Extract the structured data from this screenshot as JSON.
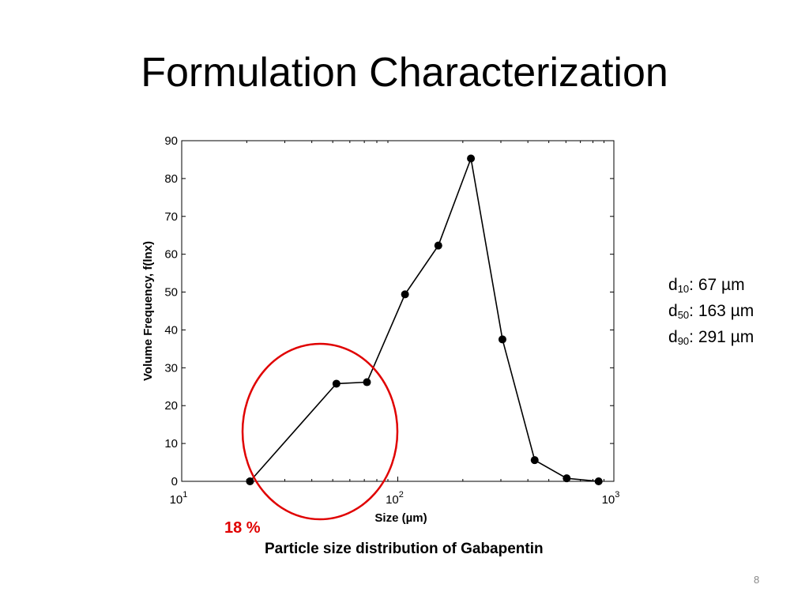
{
  "title": "Formulation Characterization",
  "stats": [
    {
      "label": "d",
      "sub": "10",
      "value": ": 67 µm"
    },
    {
      "label": "d",
      "sub": "50",
      "value": ": 163 µm"
    },
    {
      "label": "d",
      "sub": "90",
      "value": ": 291 µm"
    }
  ],
  "annotation": "18 %",
  "caption": "Particle size distribution of Gabapentin",
  "page_number": "8",
  "colors": {
    "annotation": "#e00000",
    "line": "#000000"
  },
  "chart_data": {
    "type": "line",
    "title": "",
    "xlabel": "Size (µm)",
    "ylabel": "Volume Frequency, f(lnx)",
    "x_scale": "log",
    "xlim": [
      10,
      1000
    ],
    "ylim": [
      0,
      90
    ],
    "x_ticks": [
      {
        "base": "10",
        "exp": "1",
        "value": 10
      },
      {
        "base": "10",
        "exp": "2",
        "value": 100
      },
      {
        "base": "10",
        "exp": "3",
        "value": 1000
      }
    ],
    "y_ticks": [
      0,
      10,
      20,
      30,
      40,
      50,
      60,
      70,
      80,
      90
    ],
    "grid": false,
    "series": [
      {
        "x": [
          20.7,
          52,
          72,
          108,
          154,
          218,
          305,
          430,
          605,
          850
        ],
        "y": [
          0,
          25.8,
          26.2,
          49.4,
          62.3,
          85.3,
          37.5,
          5.6,
          0.8,
          0
        ]
      }
    ]
  }
}
